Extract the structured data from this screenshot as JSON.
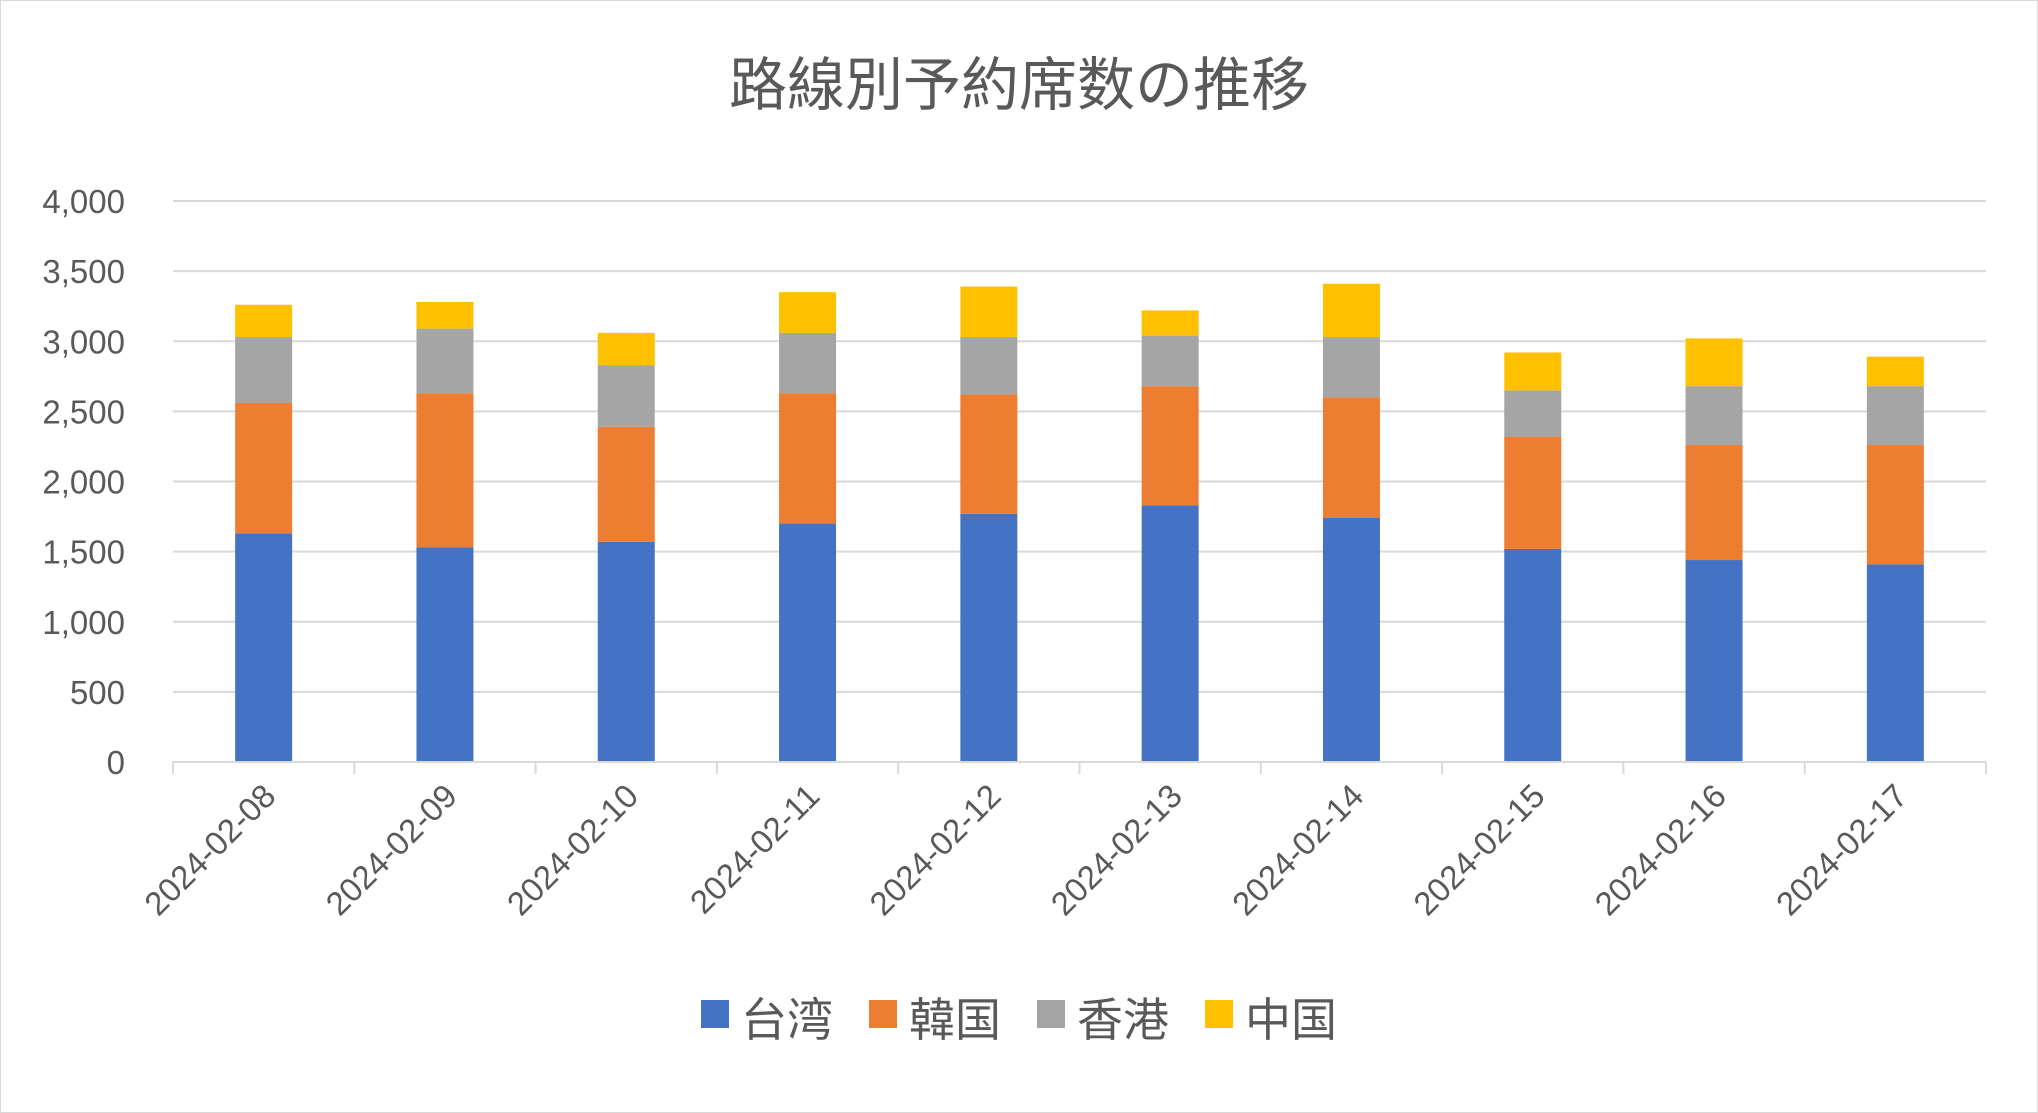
{
  "chart_data": {
    "type": "bar",
    "stacked": true,
    "title": "路線別予約席数の推移",
    "xlabel": "",
    "ylabel": "",
    "ylim": [
      0,
      4000
    ],
    "yticks": [
      "0",
      "500",
      "1,000",
      "1,500",
      "2,000",
      "2,500",
      "3,000",
      "3,500",
      "4,000"
    ],
    "ytick_values": [
      0,
      500,
      1000,
      1500,
      2000,
      2500,
      3000,
      3500,
      4000
    ],
    "grid": true,
    "legend_position": "bottom",
    "categories": [
      "2024-02-08",
      "2024-02-09",
      "2024-02-10",
      "2024-02-11",
      "2024-02-12",
      "2024-02-13",
      "2024-02-14",
      "2024-02-15",
      "2024-02-16",
      "2024-02-17"
    ],
    "series": [
      {
        "name": "台湾",
        "color": "#4472C4",
        "values": [
          1630,
          1530,
          1570,
          1700,
          1770,
          1830,
          1740,
          1520,
          1440,
          1410
        ]
      },
      {
        "name": "韓国",
        "color": "#ED7D31",
        "values": [
          930,
          1100,
          820,
          930,
          850,
          850,
          860,
          800,
          820,
          850
        ]
      },
      {
        "name": "香港",
        "color": "#A5A5A5",
        "values": [
          470,
          460,
          440,
          430,
          410,
          360,
          430,
          330,
          420,
          420
        ]
      },
      {
        "name": "中国",
        "color": "#FFC000",
        "values": [
          230,
          190,
          230,
          290,
          360,
          180,
          380,
          270,
          340,
          210
        ]
      }
    ]
  }
}
